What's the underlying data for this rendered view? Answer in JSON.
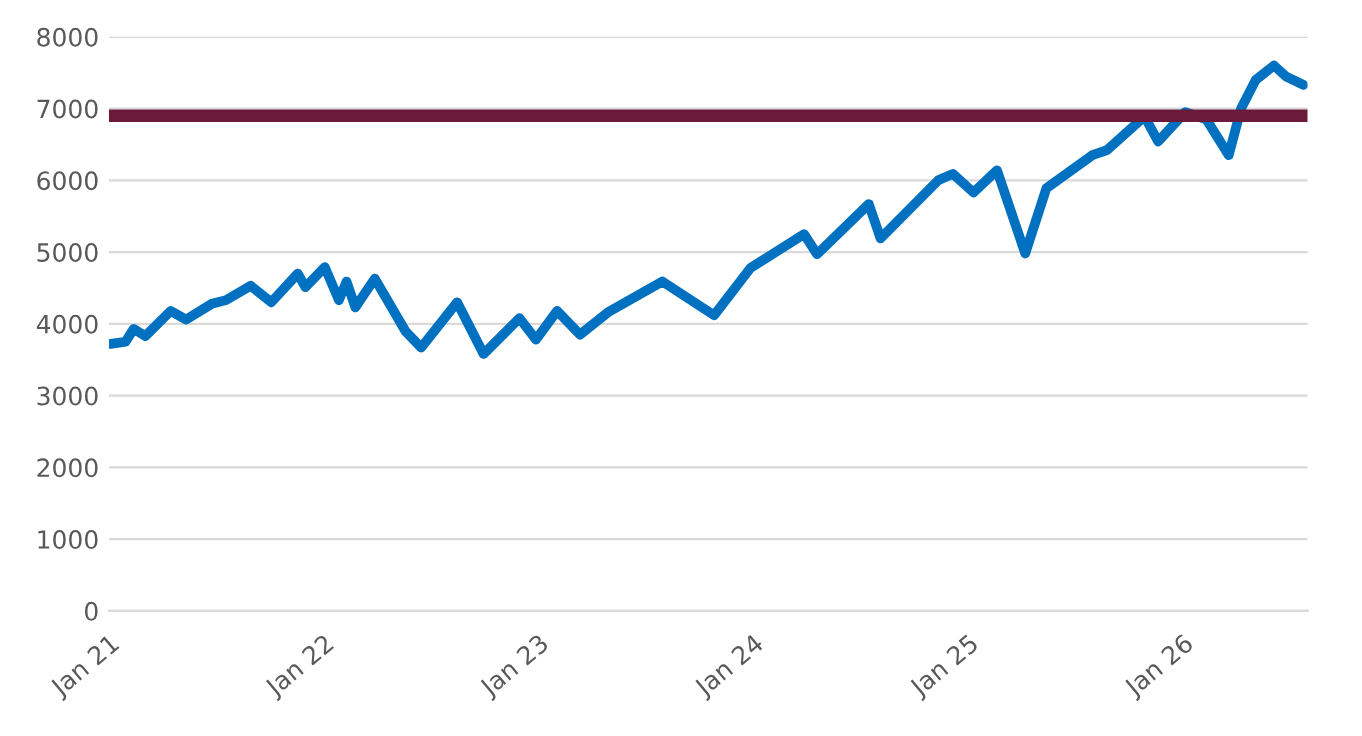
{
  "chart_data": {
    "type": "line",
    "x": [
      "2021-01-04",
      "2021-01-29",
      "2021-02-12",
      "2021-03-04",
      "2021-04-16",
      "2021-05-12",
      "2021-06-25",
      "2021-07-19",
      "2021-08-30",
      "2021-10-04",
      "2021-11-18",
      "2021-12-01",
      "2022-01-03",
      "2022-01-27",
      "2022-02-09",
      "2022-02-24",
      "2022-03-29",
      "2022-05-20",
      "2022-06-16",
      "2022-08-16",
      "2022-09-30",
      "2022-11-30",
      "2022-12-28",
      "2023-02-02",
      "2023-03-13",
      "2023-05-01",
      "2023-07-31",
      "2023-10-27",
      "2023-12-28",
      "2024-03-28",
      "2024-04-19",
      "2024-07-16",
      "2024-08-05",
      "2024-11-11",
      "2024-12-06",
      "2025-01-10",
      "2025-02-19",
      "2025-04-08",
      "2025-05-14",
      "2025-07-31",
      "2025-08-25",
      "2025-10-28",
      "2025-11-20",
      "2026-01-05",
      "2026-02-10",
      "2026-03-20",
      "2026-04-10",
      "2026-05-05",
      "2026-06-05",
      "2026-06-25",
      "2026-07-25"
    ],
    "series": [
      {
        "color": "#0070c0",
        "values": [
          3720,
          3750,
          3930,
          3830,
          4180,
          4060,
          4280,
          4330,
          4530,
          4300,
          4700,
          4510,
          4790,
          4330,
          4590,
          4230,
          4630,
          3900,
          3670,
          4300,
          3580,
          4080,
          3780,
          4180,
          3850,
          4170,
          4590,
          4120,
          4780,
          5250,
          4970,
          5670,
          5190,
          6000,
          6090,
          5830,
          6140,
          4980,
          5890,
          6350,
          6420,
          6890,
          6540,
          6950,
          6850,
          6350,
          7000,
          7400,
          7600,
          7450,
          7330
        ]
      }
    ],
    "ylim": [
      0,
      8000
    ],
    "yticks": [
      0,
      1000,
      2000,
      3000,
      4000,
      5000,
      6000,
      7000,
      8000
    ],
    "xlim": [
      "2021-01-01",
      "2026-08-01"
    ],
    "xticks": [
      {
        "value": "2021-01-01",
        "label": "Jan 21"
      },
      {
        "value": "2022-01-01",
        "label": "Jan 22"
      },
      {
        "value": "2023-01-01",
        "label": "Jan 23"
      },
      {
        "value": "2024-01-01",
        "label": "Jan 24"
      },
      {
        "value": "2025-01-01",
        "label": "Jan 25"
      },
      {
        "value": "2026-01-01",
        "label": "Jan 26"
      }
    ],
    "ref_lines": [
      {
        "axis": "y",
        "value": 6900,
        "label": null,
        "color": "#6b1a3c"
      }
    ],
    "grid": "y",
    "marker": "none",
    "line_style": "solid",
    "legend": false
  }
}
